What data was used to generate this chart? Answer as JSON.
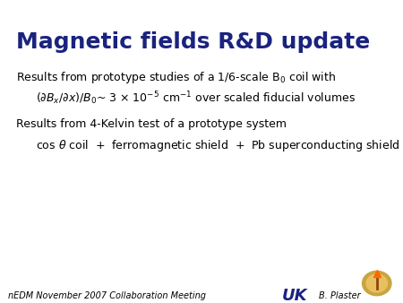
{
  "title": "Magnetic fields R&D update",
  "title_color": "#1a237e",
  "title_fontsize": 18,
  "background_color": "#ffffff",
  "line_color": "#d4a020",
  "footer_left": "nEDM November 2007 Collaboration Meeting",
  "footer_right": "B. Plaster",
  "footer_fontsize": 7,
  "body_fontsize": 9,
  "uk_fontsize": 13
}
